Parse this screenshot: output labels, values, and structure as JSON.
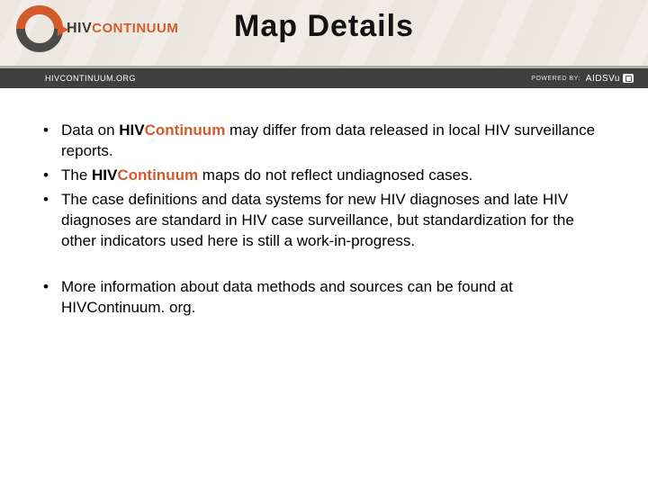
{
  "colors": {
    "accent": "#d25b2d",
    "dark": "#4a4a4a",
    "darker": "#3a3a3a",
    "subbar_bg": "#3f3f3f",
    "header_bg": "#f0ece5"
  },
  "logo": {
    "hiv": "HIV",
    "continuum": "CONTINUUM"
  },
  "title": "Map Details",
  "subbar": {
    "site": "HIVCONTINUUM.ORG",
    "powered_by_label": "POWERED BY:",
    "powered_by_brand": "AIDSVu"
  },
  "bullets_group1": [
    {
      "segments": [
        {
          "t": "Data on ",
          "b": false
        },
        {
          "t": "HIV",
          "b": true
        },
        {
          "t": "Continuum",
          "b": true,
          "accent": true
        },
        {
          "t": " may differ from data released in local HIV surveillance reports.",
          "b": false
        }
      ]
    },
    {
      "segments": [
        {
          "t": "The ",
          "b": false
        },
        {
          "t": "HIV",
          "b": true
        },
        {
          "t": "Continuum",
          "b": true,
          "accent": true
        },
        {
          "t": " maps do not reflect undiagnosed cases.",
          "b": false
        }
      ]
    },
    {
      "segments": [
        {
          "t": "The case definitions and data systems for new HIV diagnoses and late HIV diagnoses are standard in HIV case surveillance, but standardization for the other indicators used here is still a work-in-progress.",
          "b": false
        }
      ]
    }
  ],
  "bullets_group2": [
    {
      "segments": [
        {
          "t": "More information about data methods and sources can be found at HIVContinuum. org.",
          "b": false
        }
      ]
    }
  ]
}
